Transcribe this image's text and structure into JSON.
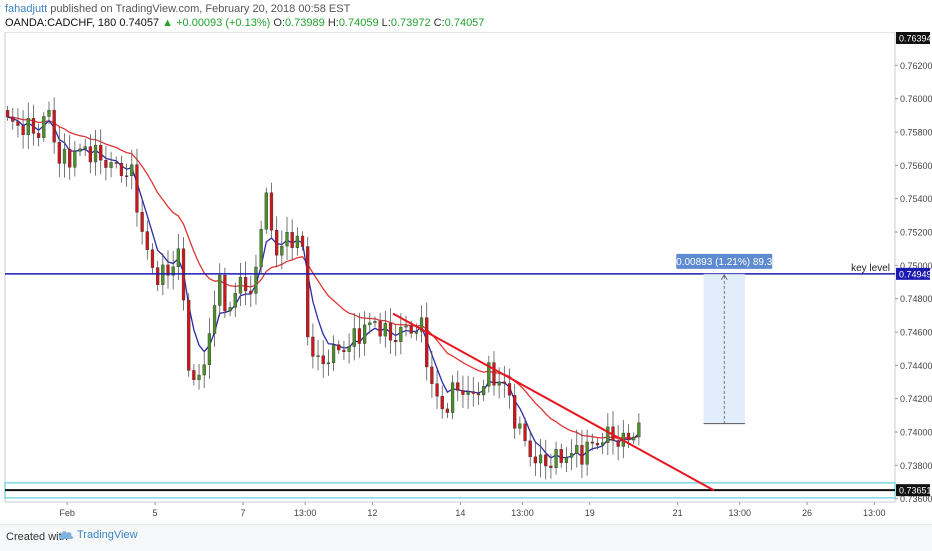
{
  "header": {
    "username": "fahadjutt",
    "published_text": "published on TradingView.com, February 20, 2018 00:58 EST",
    "symbol": "OANDA:CADCHF, 180",
    "price": "0.74057",
    "change": "▲ +0.00093 (+0.13%)",
    "o_label": "O:",
    "o_value": "0.73989",
    "h_label": "H:",
    "h_value": "0.74059",
    "l_label": "L:",
    "l_value": "0.73972",
    "c_label": "C:",
    "c_value": "0.74057"
  },
  "footer": {
    "created_with": "Created with",
    "brand": "TradingView"
  },
  "colors": {
    "bull": "#4d8f2a",
    "bear": "#d0161b",
    "ema_fast": "#2a2aa8",
    "ema_slow": "#e03434",
    "key_level": "#1a1ab0",
    "trendline": "#e8141e",
    "support": "#7fd8e0",
    "measure_fill": "#dbe8fb"
  },
  "chart_data": {
    "type": "candlestick",
    "title": "OANDA:CADCHF, 180",
    "ylim": [
      0.7358,
      0.764
    ],
    "yticks": [
      0.736,
      0.738,
      0.74,
      0.742,
      0.744,
      0.746,
      0.748,
      0.75,
      0.752,
      0.754,
      0.756,
      0.758,
      0.76,
      0.762
    ],
    "ytick_labels": [
      "0.73600",
      "0.73800",
      "0.74000",
      "0.74200",
      "0.74400",
      "0.74600",
      "0.74800",
      "0.75000",
      "0.75200",
      "0.75400",
      "0.75600",
      "0.75800",
      "0.76000",
      "0.76200"
    ],
    "xlim": [
      0,
      172
    ],
    "xticks": [
      {
        "label": "Feb",
        "bar": 12
      },
      {
        "label": "5",
        "bar": 29
      },
      {
        "label": "7",
        "bar": 46
      },
      {
        "label": "13:00",
        "bar": 58
      },
      {
        "label": "12",
        "bar": 71
      },
      {
        "label": "14",
        "bar": 88
      },
      {
        "label": "13:00",
        "bar": 100
      },
      {
        "label": "19",
        "bar": 113
      },
      {
        "label": "21",
        "bar": 130
      },
      {
        "label": "13:00",
        "bar": 142
      },
      {
        "label": "26",
        "bar": 155
      },
      {
        "label": "13:00",
        "bar": 168
      }
    ],
    "candle_count": 123,
    "anchors": [
      [
        0,
        0.7586
      ],
      [
        6,
        0.758
      ],
      [
        8,
        0.7592
      ],
      [
        10,
        0.7562
      ],
      [
        15,
        0.757
      ],
      [
        20,
        0.756
      ],
      [
        24,
        0.7554
      ],
      [
        26,
        0.752
      ],
      [
        28,
        0.7496
      ],
      [
        31,
        0.7494
      ],
      [
        33,
        0.751
      ],
      [
        35,
        0.744
      ],
      [
        37,
        0.7428
      ],
      [
        39,
        0.746
      ],
      [
        41,
        0.749
      ],
      [
        43,
        0.747
      ],
      [
        45,
        0.7495
      ],
      [
        47,
        0.7478
      ],
      [
        49,
        0.7525
      ],
      [
        50,
        0.7538
      ],
      [
        52,
        0.7508
      ],
      [
        55,
        0.7518
      ],
      [
        57,
        0.751
      ],
      [
        58,
        0.7458
      ],
      [
        60,
        0.744
      ],
      [
        63,
        0.7448
      ],
      [
        66,
        0.7452
      ],
      [
        68,
        0.746
      ],
      [
        71,
        0.7466
      ],
      [
        74,
        0.7456
      ],
      [
        77,
        0.7462
      ],
      [
        80,
        0.7462
      ],
      [
        82,
        0.7428
      ],
      [
        84,
        0.7412
      ],
      [
        86,
        0.7424
      ],
      [
        88,
        0.7426
      ],
      [
        90,
        0.742
      ],
      [
        93,
        0.7435
      ],
      [
        96,
        0.7428
      ],
      [
        99,
        0.74
      ],
      [
        102,
        0.7382
      ],
      [
        105,
        0.7382
      ],
      [
        108,
        0.7386
      ],
      [
        111,
        0.7388
      ],
      [
        113,
        0.7392
      ],
      [
        116,
        0.7398
      ],
      [
        119,
        0.7394
      ],
      [
        121,
        0.7399
      ],
      [
        122,
        0.7406
      ]
    ],
    "ema_fast_period": 5,
    "ema_slow_period": 20,
    "horizontal_lines": [
      {
        "value": 0.74949,
        "label": "0.74949",
        "note": "key level",
        "color": "#1a1ab0"
      },
      {
        "value": 0.73651,
        "label": "0.73651",
        "color": "#111111"
      }
    ],
    "top_price_label": "0.76394",
    "support_band": [
      0.73605,
      0.73695
    ],
    "trendline": {
      "from": [
        75,
        0.7471
      ],
      "to": [
        137,
        0.7365
      ]
    },
    "measure": {
      "from_value": 0.7405,
      "to_value": 0.74949,
      "bar_from": 135,
      "bar_to": 143,
      "label": "0.00893 (1.21%) 89.3"
    }
  }
}
